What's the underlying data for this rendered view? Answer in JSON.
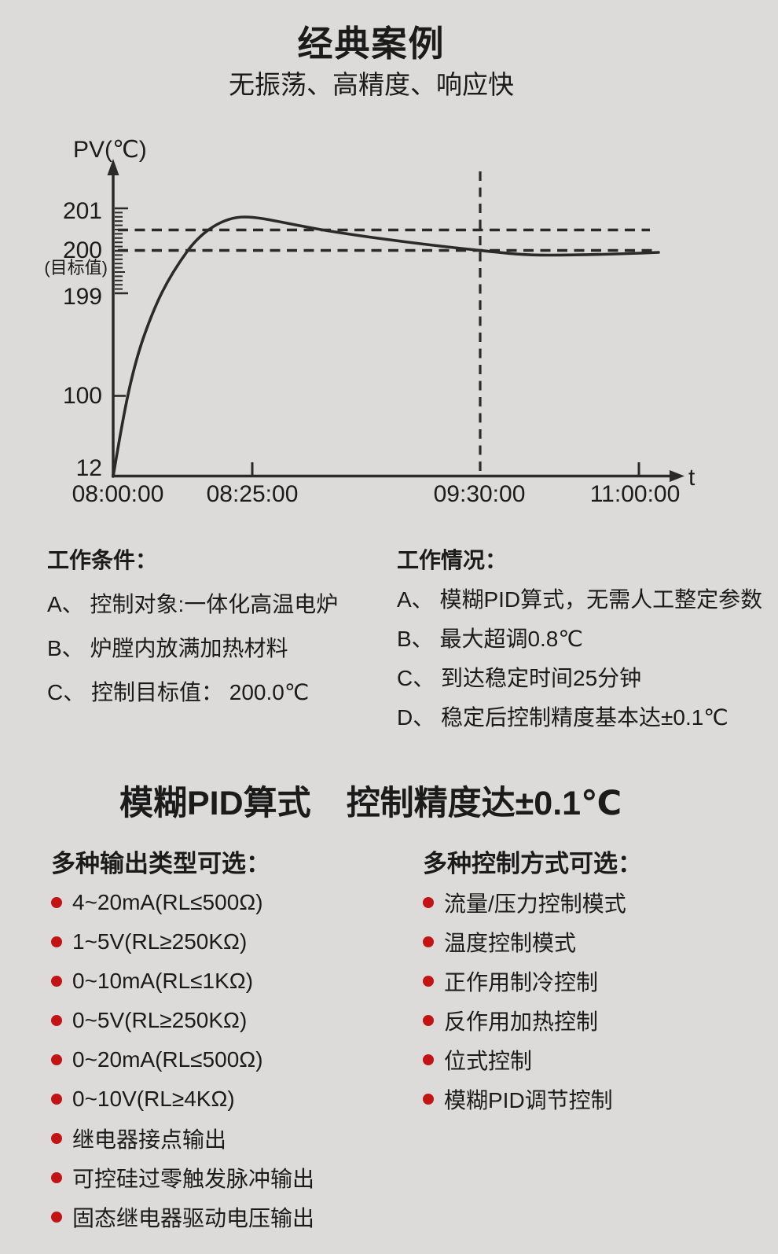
{
  "page": {
    "title": "经典案例",
    "subtitle": "无振荡、高精度、响应快",
    "background_color": "#dcdbd9",
    "text_color": "#1b1b1b",
    "accent_red": "#c21414",
    "line_color": "#2b2a27"
  },
  "chart": {
    "y_axis_label": "PV(℃)",
    "x_axis_label": "t",
    "y_tick_labels": [
      "201",
      "200",
      "199",
      "100",
      "12"
    ],
    "target_note": "(目标值)",
    "x_tick_labels": [
      "08:00:00",
      "08:25:00",
      "09:30:00",
      "11:00:00"
    ]
  },
  "chart_data": {
    "type": "line",
    "title": "",
    "xlabel": "t",
    "ylabel": "PV(℃)",
    "x_ticks": [
      "08:00:00",
      "08:25:00",
      "09:30:00",
      "11:00:00"
    ],
    "y_ticks": [
      12,
      100,
      199,
      200,
      201
    ],
    "ylim": [
      12,
      201.5
    ],
    "target_value": 200.0,
    "target_label": "(目标值)",
    "dashed_horizontal_lines": [
      200.5,
      200.0
    ],
    "dashed_vertical_line_at": "09:30:00",
    "grid": false,
    "legend": false,
    "series": [
      {
        "name": "PV",
        "points": [
          [
            "08:00:00",
            12
          ],
          [
            "08:05:00",
            120
          ],
          [
            "08:10:00",
            199.0
          ],
          [
            "08:13:00",
            200.0
          ],
          [
            "08:25:00",
            200.8
          ],
          [
            "08:45:00",
            200.4
          ],
          [
            "09:10:00",
            200.15
          ],
          [
            "09:30:00",
            200.0
          ],
          [
            "10:00:00",
            199.9
          ],
          [
            "10:30:00",
            199.9
          ],
          [
            "11:00:00",
            200.0
          ]
        ]
      }
    ],
    "annotations": {
      "overshoot_peak": 200.8,
      "settled_at": "09:30:00"
    }
  },
  "conditions": {
    "header": "工作条件：",
    "items": [
      "A、 控制对象:一体化高温电炉",
      "B、 炉膛内放满加热材料",
      "C、 控制目标值： 200.0℃"
    ]
  },
  "results": {
    "header": "工作情况：",
    "items": [
      "A、 模糊PID算式，无需人工整定参数",
      "B、 最大超调0.8℃",
      "C、 到达稳定时间25分钟",
      "D、 稳定后控制精度基本达±0.1℃"
    ]
  },
  "feature_heading": {
    "part1": "模糊PID算式",
    "part2": "控制精度达±0.1℃"
  },
  "outputs": {
    "header": "多种输出类型可选：",
    "items": [
      "4~20mA(RL≤500Ω)",
      "1~5V(RL≥250KΩ)",
      "0~10mA(RL≤1KΩ)",
      "0~5V(RL≥250KΩ)",
      "0~20mA(RL≤500Ω)",
      "0~10V(RL≥4KΩ)",
      "继电器接点输出",
      "可控硅过零触发脉冲输出",
      "固态继电器驱动电压输出"
    ]
  },
  "modes": {
    "header": "多种控制方式可选：",
    "items": [
      "流量/压力控制模式",
      "温度控制模式",
      "正作用制冷控制",
      "反作用加热控制",
      "位式控制",
      "模糊PID调节控制"
    ]
  }
}
